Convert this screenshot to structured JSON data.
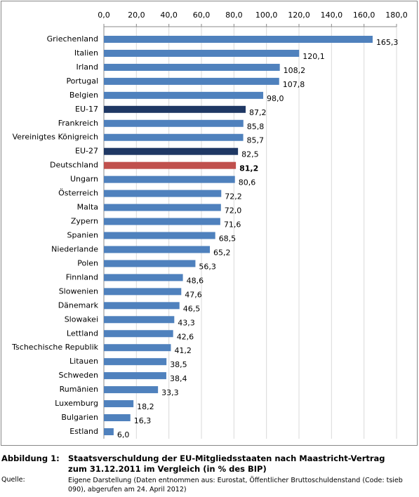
{
  "chart_data": {
    "type": "barh",
    "categories": [
      "Griechenland",
      "Italien",
      "Irland",
      "Portugal",
      "Belgien",
      "EU-17",
      "Frankreich",
      "Vereinigtes Königreich",
      "EU-27",
      "Deutschland",
      "Ungarn",
      "Österreich",
      "Malta",
      "Zypern",
      "Spanien",
      "Niederlande",
      "Polen",
      "Finnland",
      "Slowenien",
      "Dänemark",
      "Slowakei",
      "Lettland",
      "Tschechische Republik",
      "Litauen",
      "Schweden",
      "Rumänien",
      "Luxemburg",
      "Bulgarien",
      "Estland"
    ],
    "values": [
      165.3,
      120.1,
      108.2,
      107.8,
      98.0,
      87.2,
      85.8,
      85.7,
      82.5,
      81.2,
      80.6,
      72.2,
      72.0,
      71.6,
      68.5,
      65.2,
      56.3,
      48.6,
      47.6,
      46.5,
      43.3,
      42.6,
      41.2,
      38.5,
      38.4,
      33.3,
      18.2,
      16.3,
      6.0
    ],
    "value_labels": [
      "165,3",
      "120,1",
      "108,2",
      "107,8",
      "98,0",
      "87,2",
      "85,8",
      "85,7",
      "82,5",
      "81,2",
      "80,6",
      "72,2",
      "72,0",
      "71,6",
      "68,5",
      "65,2",
      "56,3",
      "48,6",
      "47,6",
      "46,5",
      "43,3",
      "42,6",
      "41,2",
      "38,5",
      "38,4",
      "33,3",
      "18,2",
      "16,3",
      "6,0"
    ],
    "colors": [
      "#4f81bd",
      "#4f81bd",
      "#4f81bd",
      "#4f81bd",
      "#4f81bd",
      "#1f3864",
      "#4f81bd",
      "#4f81bd",
      "#1f3864",
      "#c0504d",
      "#4f81bd",
      "#4f81bd",
      "#4f81bd",
      "#4f81bd",
      "#4f81bd",
      "#4f81bd",
      "#4f81bd",
      "#4f81bd",
      "#4f81bd",
      "#4f81bd",
      "#4f81bd",
      "#4f81bd",
      "#4f81bd",
      "#4f81bd",
      "#4f81bd",
      "#4f81bd",
      "#4f81bd",
      "#4f81bd",
      "#4f81bd"
    ],
    "highlight_color": "#c0504d",
    "xlim": [
      0,
      180
    ],
    "xticks": [
      {
        "value": 0,
        "label": "0,0"
      },
      {
        "value": 20,
        "label": "20,0"
      },
      {
        "value": 40,
        "label": "40,0"
      },
      {
        "value": 60,
        "label": "60,0"
      },
      {
        "value": 80,
        "label": "80,0"
      },
      {
        "value": 100,
        "label": "100,0"
      },
      {
        "value": 120,
        "label": "120,0"
      },
      {
        "value": 140,
        "label": "140,0"
      },
      {
        "value": 160,
        "label": "160,0"
      },
      {
        "value": 180,
        "label": "180,0"
      }
    ],
    "grid": true
  },
  "caption": {
    "label": "Abbildung 1:",
    "title": "Staatsverschuldung der EU-Mitgliedsstaaten nach Maastricht-Vertrag zum 31.12.2011 im Vergleich (in % des BIP)",
    "source_label": "Quelle:",
    "source": "Eigene Darstellung (Daten entnommen aus: Eurostat, Öffentlicher Bruttoschuldenstand (Code: tsieb 090), abgerufen am 24. April 2012)"
  }
}
